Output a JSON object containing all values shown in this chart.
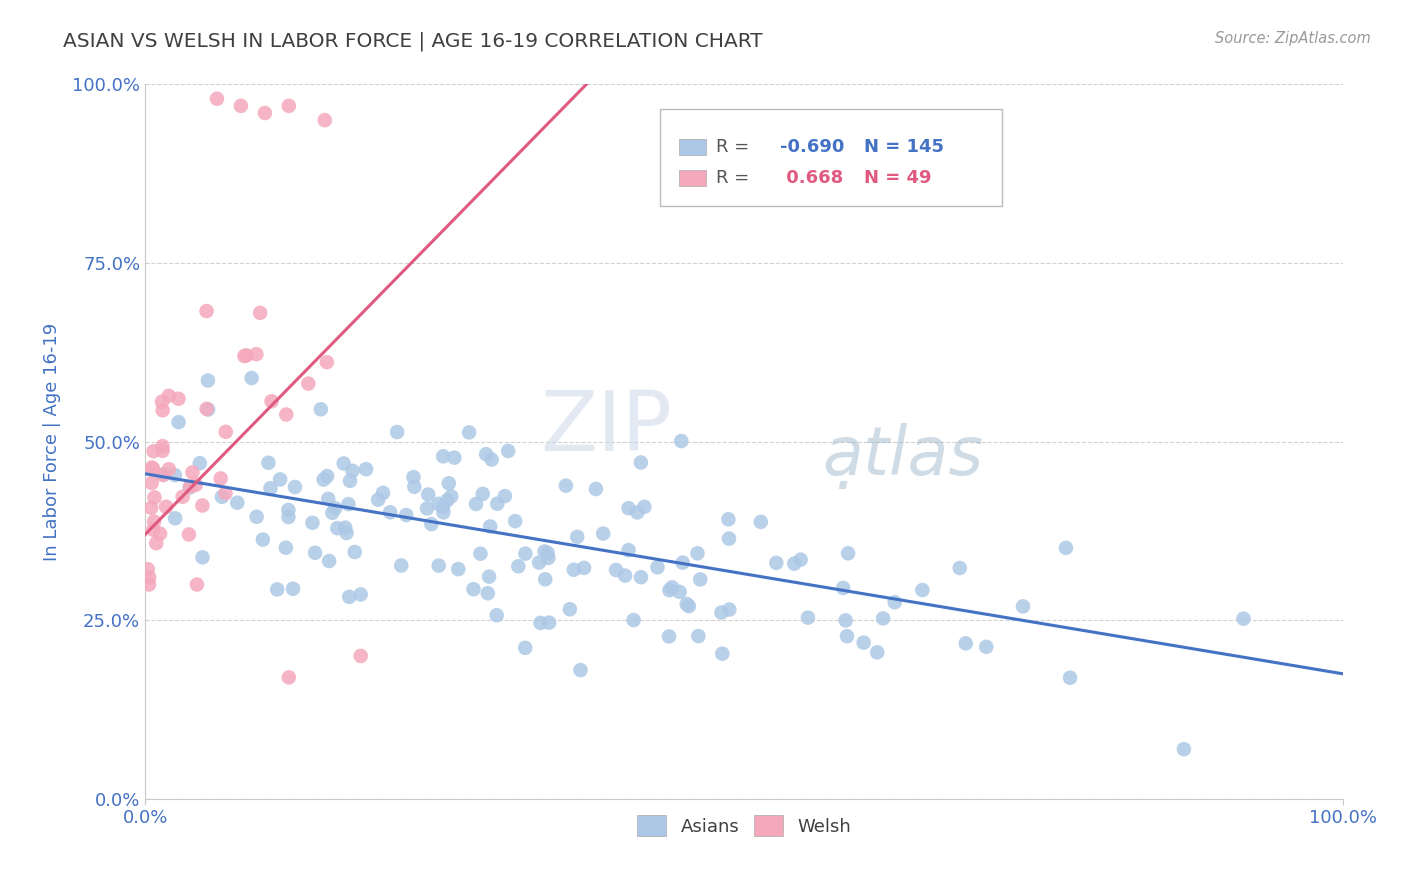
{
  "title": "ASIAN VS WELSH IN LABOR FORCE | AGE 16-19 CORRELATION CHART",
  "source_text": "Source: ZipAtlas.com",
  "ylabel": "In Labor Force | Age 16-19",
  "xlim": [
    0.0,
    1.0
  ],
  "ylim": [
    0.0,
    1.0
  ],
  "ytick_positions": [
    0.0,
    0.25,
    0.5,
    0.75,
    1.0
  ],
  "ytick_labels": [
    "0.0%",
    "25.0%",
    "50.0%",
    "75.0%",
    "100.0%"
  ],
  "xtick_positions": [
    0.0,
    1.0
  ],
  "xtick_labels": [
    "0.0%",
    "100.0%"
  ],
  "legend_r_asian": "-0.690",
  "legend_n_asian": "145",
  "legend_r_welsh": "0.668",
  "legend_n_welsh": "49",
  "asian_color": "#adc8e6",
  "welsh_color": "#f4a8bc",
  "asian_line_color": "#4472c4",
  "welsh_line_color": "#e05a80",
  "watermark_zip": "ZIP",
  "watermark_atlas": "atlas",
  "watermark_dot": ".",
  "background_color": "#ffffff",
  "grid_color": "#cccccc",
  "title_color": "#404040",
  "axis_label_color": "#4472c4",
  "tick_color": "#4472c4",
  "asian_n": 145,
  "welsh_n": 49,
  "asian_seed": 42,
  "welsh_seed": 99,
  "asian_line_x0": 0.0,
  "asian_line_y0": 0.455,
  "asian_line_x1": 1.0,
  "asian_line_y1": 0.175,
  "welsh_line_x0": 0.0,
  "welsh_line_y0": 0.37,
  "welsh_line_x1": 0.38,
  "welsh_line_y1": 1.02
}
